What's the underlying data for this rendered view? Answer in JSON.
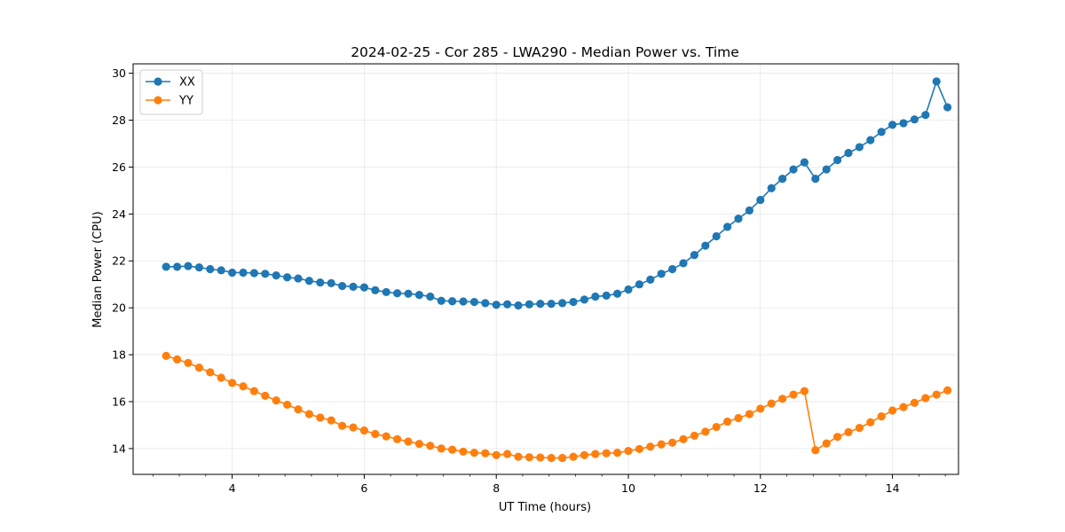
{
  "chart_data": {
    "type": "line",
    "title": "2024-02-25 - Cor 285 - LWA290 - Median Power vs. Time",
    "xlabel": "UT Time (hours)",
    "ylabel": "Median Power (CPU)",
    "xlim": [
      2.5,
      15.0
    ],
    "ylim": [
      12.9,
      30.4
    ],
    "xticks": [
      4,
      6,
      8,
      10,
      12,
      14
    ],
    "xtick_labels": [
      "4",
      "6",
      "8",
      "10",
      "12",
      "14"
    ],
    "yticks": [
      14,
      16,
      18,
      20,
      22,
      24,
      26,
      28,
      30
    ],
    "ytick_labels": [
      "14",
      "16",
      "18",
      "20",
      "22",
      "24",
      "26",
      "28",
      "30"
    ],
    "grid": true,
    "legend_position": "top-left",
    "x": [
      3.0,
      3.1667,
      3.3333,
      3.5,
      3.6667,
      3.8333,
      4.0,
      4.1667,
      4.3333,
      4.5,
      4.6667,
      4.8333,
      5.0,
      5.1667,
      5.3333,
      5.5,
      5.6667,
      5.8333,
      6.0,
      6.1667,
      6.3333,
      6.5,
      6.6667,
      6.8333,
      7.0,
      7.1667,
      7.3333,
      7.5,
      7.6667,
      7.8333,
      8.0,
      8.1667,
      8.3333,
      8.5,
      8.6667,
      8.8333,
      9.0,
      9.1667,
      9.3333,
      9.5,
      9.6667,
      9.8333,
      10.0,
      10.1667,
      10.3333,
      10.5,
      10.6667,
      10.8333,
      11.0,
      11.1667,
      11.3333,
      11.5,
      11.6667,
      11.8333,
      12.0,
      12.1667,
      12.3333,
      12.5,
      12.6667,
      12.8333,
      13.0,
      13.1667,
      13.3333,
      13.5,
      13.6667,
      13.8333,
      14.0,
      14.1667,
      14.3333,
      14.5,
      14.6667,
      14.8333
    ],
    "series": [
      {
        "name": "XX",
        "color": "#1f77b4",
        "values": [
          21.75,
          21.75,
          21.78,
          21.72,
          21.65,
          21.6,
          21.5,
          21.5,
          21.48,
          21.45,
          21.38,
          21.3,
          21.25,
          21.15,
          21.08,
          21.05,
          20.93,
          20.9,
          20.87,
          20.75,
          20.67,
          20.62,
          20.6,
          20.55,
          20.48,
          20.3,
          20.28,
          20.27,
          20.25,
          20.2,
          20.13,
          20.15,
          20.1,
          20.15,
          20.17,
          20.17,
          20.2,
          20.25,
          20.35,
          20.48,
          20.52,
          20.6,
          20.78,
          21.0,
          21.2,
          21.45,
          21.65,
          21.9,
          22.25,
          22.65,
          23.05,
          23.45,
          23.8,
          24.15,
          24.6,
          25.1,
          25.5,
          25.9,
          26.2,
          25.5,
          25.9,
          26.3,
          26.6,
          26.85,
          27.15,
          27.5,
          27.8,
          27.87,
          28.03,
          28.22,
          29.65,
          28.55
        ]
      },
      {
        "name": "YY",
        "color": "#ff7f0e",
        "values": [
          17.95,
          17.8,
          17.65,
          17.45,
          17.25,
          17.02,
          16.8,
          16.65,
          16.45,
          16.25,
          16.05,
          15.87,
          15.67,
          15.47,
          15.32,
          15.2,
          14.97,
          14.9,
          14.77,
          14.62,
          14.52,
          14.4,
          14.3,
          14.2,
          14.12,
          14.0,
          13.95,
          13.87,
          13.82,
          13.8,
          13.72,
          13.77,
          13.65,
          13.63,
          13.62,
          13.6,
          13.6,
          13.65,
          13.72,
          13.77,
          13.8,
          13.82,
          13.9,
          13.98,
          14.08,
          14.18,
          14.25,
          14.4,
          14.55,
          14.72,
          14.92,
          15.15,
          15.3,
          15.47,
          15.7,
          15.92,
          16.12,
          16.3,
          16.45,
          13.93,
          14.22,
          14.5,
          14.7,
          14.88,
          15.12,
          15.37,
          15.62,
          15.77,
          15.95,
          16.15,
          16.3,
          16.48
        ]
      }
    ]
  }
}
